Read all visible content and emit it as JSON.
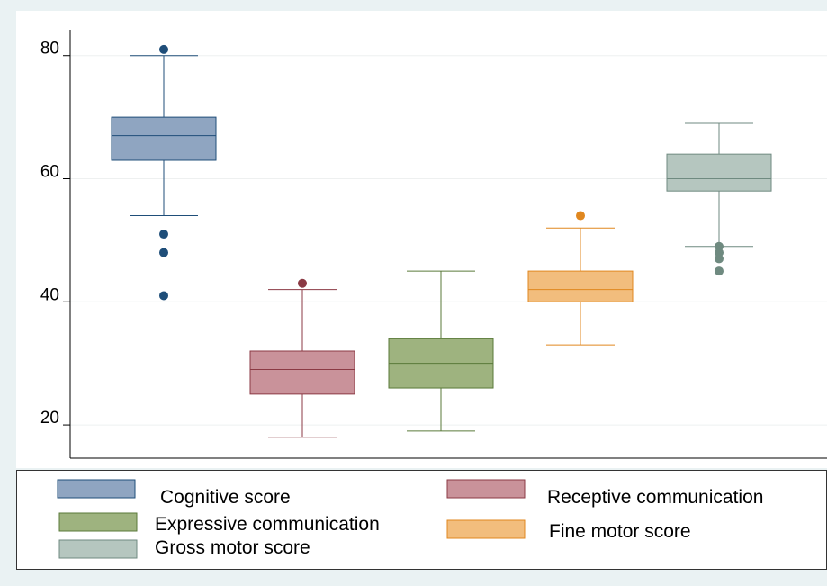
{
  "chart_data": {
    "type": "box",
    "ylim": [
      14.6,
      84.2
    ],
    "yticks": [
      20,
      40,
      60,
      80
    ],
    "grid": true,
    "legend": "bottom",
    "series": [
      {
        "name": "Cognitive score",
        "color": "#1f4e79",
        "fill": "#8fa5c1",
        "whislo": 54,
        "q1": 63,
        "med": 67,
        "q3": 70,
        "whishi": 80,
        "fliers": [
          81,
          51,
          48,
          41
        ]
      },
      {
        "name": "Receptive communication",
        "color": "#8b3a44",
        "fill": "#c9929a",
        "whislo": 18,
        "q1": 25,
        "med": 29,
        "q3": 32,
        "whishi": 42,
        "fliers": [
          43
        ]
      },
      {
        "name": "Expressive communication",
        "color": "#5a7a3a",
        "fill": "#9eb37f",
        "whislo": 19,
        "q1": 26,
        "med": 30,
        "q3": 34,
        "whishi": 45,
        "fliers": []
      },
      {
        "name": "Fine motor score",
        "color": "#e0871f",
        "fill": "#f2bd7d",
        "whislo": 33,
        "q1": 40,
        "med": 42,
        "q3": 45,
        "whishi": 52,
        "fliers": [
          54
        ]
      },
      {
        "name": "Gross motor score",
        "color": "#6f8a80",
        "fill": "#b5c6bf",
        "whislo": 49,
        "q1": 58,
        "med": 60,
        "q3": 64,
        "whishi": 69,
        "fliers": [
          49,
          48,
          47,
          45
        ]
      }
    ]
  }
}
